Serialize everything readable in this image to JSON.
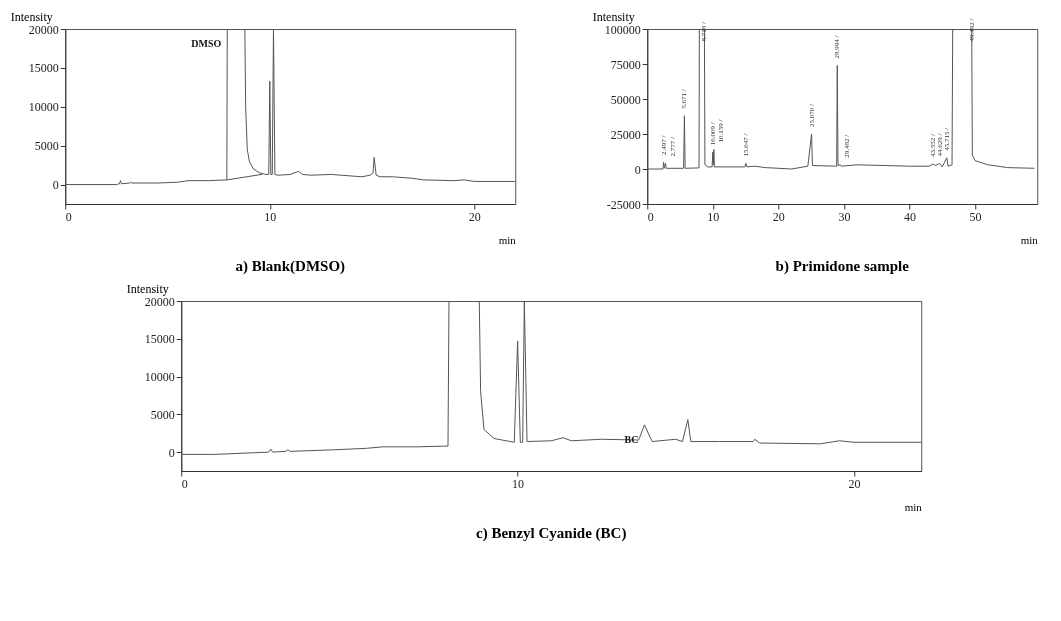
{
  "chart_data": [
    {
      "type": "line",
      "title": "a)    Blank(DMSO)",
      "xlabel": "min",
      "ylabel": "Intensity",
      "xlim": [
        0,
        22
      ],
      "xticks": [
        0,
        10,
        20
      ],
      "ylim": [
        -2500,
        20000
      ],
      "yticks": [
        0,
        5000,
        10000,
        15000,
        20000
      ],
      "grid": false,
      "series": [
        {
          "color": "#555555",
          "x": [
            0,
            2.5,
            2.65,
            2.7,
            2.75,
            3.15,
            3.2,
            3.25,
            4.5,
            5.5,
            6,
            7,
            7.9,
            7.92,
            8.78,
            8.82,
            8.9,
            9.0,
            9.2,
            9.5,
            9.8,
            9.95,
            10.0,
            10.05,
            10.12,
            10.18,
            10.25,
            10.4,
            11.0,
            11.4,
            11.6,
            12,
            13,
            14.5,
            14.9,
            15.05,
            15.1,
            15.2,
            15.4,
            16,
            17,
            17.5,
            19,
            19.5,
            20,
            22
          ],
          "values": [
            0,
            0,
            100,
            500,
            100,
            200,
            300,
            200,
            200,
            300,
            500,
            500,
            600,
            20000,
            20000,
            10000,
            4500,
            3000,
            2000,
            1500,
            1300,
            1300,
            13300,
            1300,
            1300,
            20000,
            1300,
            1200,
            1300,
            1700,
            1300,
            1200,
            1300,
            1000,
            1200,
            1500,
            3500,
            1200,
            1000,
            1000,
            800,
            600,
            500,
            600,
            400,
            400
          ]
        },
        {
          "color": "#555555",
          "x": [
            7.9,
            9.6
          ],
          "values": [
            600,
            1300
          ]
        }
      ],
      "annotations": [
        {
          "text": "DMSO",
          "x": 7.92,
          "y": 20000
        }
      ]
    },
    {
      "type": "line",
      "title": "b) Primidone sample",
      "xlabel": "min",
      "ylabel": "Intensity",
      "xlim": [
        0,
        59.5
      ],
      "xticks": [
        0,
        10,
        20,
        30,
        40,
        50
      ],
      "ylim": [
        -25000,
        100000
      ],
      "yticks": [
        -25000,
        0,
        25000,
        50000,
        75000,
        100000
      ],
      "grid": false,
      "series": [
        {
          "color": "#555555",
          "x": [
            0,
            2.4,
            2.5,
            2.6,
            2.8,
            2.9,
            5.55,
            5.67,
            5.78,
            7.9,
            7.95,
            8.72,
            8.8,
            9.2,
            9.9,
            10.0,
            10.08,
            10.16,
            10.25,
            14.9,
            15.05,
            15.2,
            16.4,
            18,
            22,
            24.5,
            25.07,
            25.2,
            28.9,
            28.99,
            29.1,
            29.48,
            29.6,
            32,
            40,
            43,
            43.55,
            44.0,
            44.6,
            45.0,
            45.7,
            45.9,
            46.5,
            46.6,
            49.5,
            49.6,
            50,
            52,
            55,
            59
          ],
          "values": [
            0,
            0,
            5000,
            500,
            4000,
            500,
            500,
            38000,
            500,
            800,
            100000,
            100000,
            3000,
            1500,
            1500,
            12000,
            3000,
            14000,
            1500,
            1500,
            4000,
            1500,
            2000,
            1000,
            0,
            2000,
            25000,
            2500,
            2000,
            74000,
            2500,
            3000,
            2000,
            3000,
            2000,
            2000,
            3500,
            2500,
            4000,
            1500,
            8000,
            2000,
            3000,
            100000,
            100000,
            10000,
            6000,
            3000,
            1000,
            500
          ]
        }
      ],
      "annotations": [
        {
          "text": "2.497 /",
          "x": 2.5,
          "y": 5000
        },
        {
          "text": "2.777 /",
          "x": 2.8,
          "y": 4000
        },
        {
          "text": "5.671 /",
          "x": 5.67,
          "y": 38000
        },
        {
          "text": "8.718 /",
          "x": 8.72,
          "y": 86000
        },
        {
          "text": "10.009 /",
          "x": 10.0,
          "y": 12000
        },
        {
          "text": "10.159 /",
          "x": 10.16,
          "y": 14000
        },
        {
          "text": "15.047 /",
          "x": 15.05,
          "y": 4000
        },
        {
          "text": "25.070 /",
          "x": 25.07,
          "y": 25000
        },
        {
          "text": "28.994 /",
          "x": 28.99,
          "y": 74000
        },
        {
          "text": "29.482 /",
          "x": 29.48,
          "y": 3000
        },
        {
          "text": "43.552 /",
          "x": 43.55,
          "y": 3500
        },
        {
          "text": "44.629 /",
          "x": 44.63,
          "y": 4000
        },
        {
          "text": "45.715 /",
          "x": 45.7,
          "y": 8000
        },
        {
          "text": "49.492 /",
          "x": 49.6,
          "y": 86000
        }
      ]
    },
    {
      "type": "line",
      "title": "c)    Benzyl Cyanide (BC)",
      "xlabel": "min",
      "ylabel": "Intensity",
      "xlim": [
        0,
        22
      ],
      "xticks": [
        0,
        10,
        20
      ],
      "ylim": [
        -2500,
        20000
      ],
      "yticks": [
        0,
        5000,
        10000,
        15000,
        20000
      ],
      "grid": false,
      "series": [
        {
          "color": "#555555",
          "x": [
            0,
            1,
            2.6,
            2.66,
            2.72,
            3.1,
            3.17,
            3.24,
            4.5,
            5.5,
            6,
            7,
            7.93,
            7.96,
            8.86,
            8.9,
            9.0,
            9.3,
            9.9,
            10.0,
            10.08,
            10.15,
            10.2,
            10.28,
            11,
            11.35,
            11.6,
            12.5,
            13.6,
            13.77,
            14.0,
            14.7,
            14.9,
            15.06,
            15.15,
            16,
            17,
            17.05,
            17.2,
            19,
            19.57,
            20,
            22
          ],
          "values": [
            -300,
            -300,
            0,
            400,
            0,
            100,
            300,
            100,
            300,
            500,
            700,
            700,
            800,
            20000,
            20000,
            8000,
            3000,
            1800,
            1300,
            14700,
            1300,
            1300,
            20000,
            1400,
            1500,
            1900,
            1500,
            1700,
            1600,
            3600,
            1400,
            1700,
            1400,
            4300,
            1400,
            1400,
            1400,
            1700,
            1200,
            1100,
            1500,
            1300,
            1300
          ]
        }
      ],
      "annotations": [
        {
          "text": "BC",
          "x": 13.77,
          "y": 3600
        }
      ]
    }
  ]
}
